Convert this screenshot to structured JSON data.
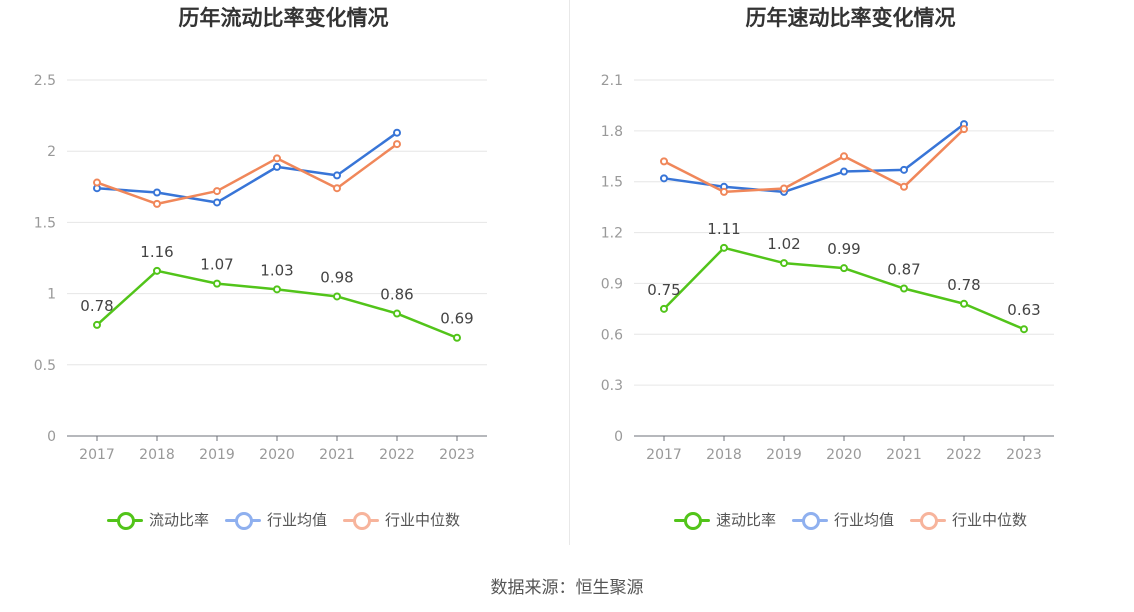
{
  "source": "数据来源：恒生聚源",
  "chart_data": [
    {
      "type": "line",
      "title": "历年流动比率变化情况",
      "xlabel": "",
      "ylabel": "",
      "categories": [
        "2017",
        "2018",
        "2019",
        "2020",
        "2021",
        "2022",
        "2023"
      ],
      "ylim": [
        0,
        2.5
      ],
      "yticks": [
        0,
        0.5,
        1,
        1.5,
        2,
        2.5
      ],
      "ytick_labels": [
        "0",
        "0.5",
        "1",
        "1.5",
        "2",
        "2.5"
      ],
      "grid": true,
      "legend_position": "bottom-center",
      "series": [
        {
          "name": "流动比率",
          "color": "#52c41a",
          "values": [
            0.78,
            1.16,
            1.07,
            1.03,
            0.98,
            0.86,
            0.69
          ],
          "labels": [
            "0.78",
            "1.16",
            "1.07",
            "1.03",
            "0.98",
            "0.86",
            "0.69"
          ]
        },
        {
          "name": "行业均值",
          "color": "#3875d7",
          "legend_color": "#8fb0ef",
          "values": [
            1.74,
            1.71,
            1.64,
            1.89,
            1.83,
            2.13,
            null
          ]
        },
        {
          "name": "行业中位数",
          "color": "#f0875a",
          "legend_color": "#f7b49c",
          "values": [
            1.78,
            1.63,
            1.72,
            1.95,
            1.74,
            2.05,
            null
          ]
        }
      ]
    },
    {
      "type": "line",
      "title": "历年速动比率变化情况",
      "xlabel": "",
      "ylabel": "",
      "categories": [
        "2017",
        "2018",
        "2019",
        "2020",
        "2021",
        "2022",
        "2023"
      ],
      "ylim": [
        0,
        2.1
      ],
      "yticks": [
        0,
        0.3,
        0.6,
        0.9,
        1.2,
        1.5,
        1.8,
        2.1
      ],
      "ytick_labels": [
        "0",
        "0.3",
        "0.6",
        "0.9",
        "1.2",
        "1.5",
        "1.8",
        "2.1"
      ],
      "grid": true,
      "legend_position": "bottom-center",
      "series": [
        {
          "name": "速动比率",
          "color": "#52c41a",
          "values": [
            0.75,
            1.11,
            1.02,
            0.99,
            0.87,
            0.78,
            0.63
          ],
          "labels": [
            "0.75",
            "1.11",
            "1.02",
            "0.99",
            "0.87",
            "0.78",
            "0.63"
          ]
        },
        {
          "name": "行业均值",
          "color": "#3875d7",
          "legend_color": "#8fb0ef",
          "values": [
            1.52,
            1.47,
            1.44,
            1.56,
            1.57,
            1.84,
            null
          ]
        },
        {
          "name": "行业中位数",
          "color": "#f0875a",
          "legend_color": "#f7b49c",
          "values": [
            1.62,
            1.44,
            1.46,
            1.65,
            1.47,
            1.81,
            null
          ]
        }
      ]
    }
  ]
}
